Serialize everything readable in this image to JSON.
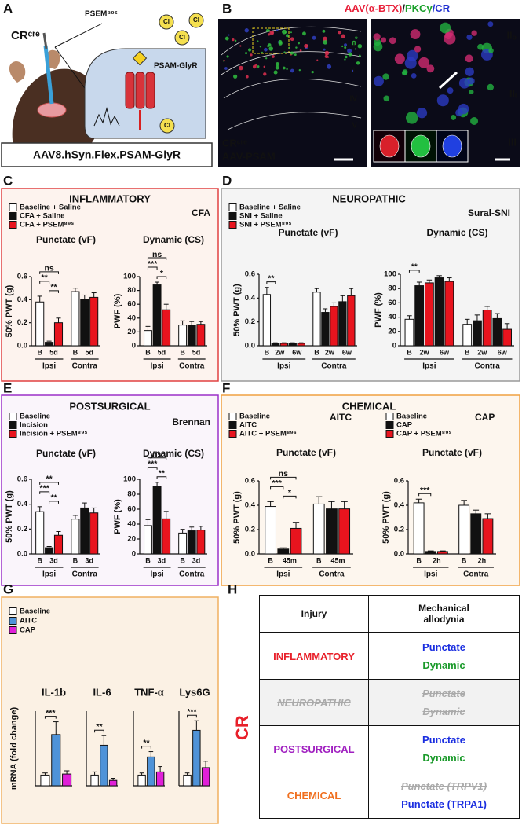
{
  "panels": {
    "A": {
      "label": "A",
      "mouse": "CRᶜʳᵉ",
      "drug": "PSEM⁸⁹ˢ",
      "receptor": "PSAM-GlyR",
      "ion": "Cl",
      "construct": "AAV8.hSyn.Flex.PSAM-GlyR"
    },
    "B": {
      "label": "B",
      "title_parts": [
        {
          "text": "AAV(α-BTX)",
          "color": "#e8203a"
        },
        {
          "text": "/",
          "color": "#1a1a1a"
        },
        {
          "text": "PKCγ",
          "color": "#1aa02a"
        },
        {
          "text": "/CR",
          "color": "#2030d0"
        }
      ],
      "layers": [
        "I",
        "II",
        "III",
        "IV",
        "V"
      ],
      "mouse": "CRᶜʳᵉ",
      "virus": "AAV-PSAM",
      "zoom_layers": [
        "IIₒ",
        "IIᵢ",
        "III"
      ]
    },
    "C": {
      "label": "C",
      "title": "INFLAMMATORY",
      "color": "#e8202a",
      "model": "CFA"
    },
    "D": {
      "label": "D",
      "title": "NEUROPATHIC",
      "color": "#7a3b2e",
      "model": "Sural-SNI"
    },
    "E": {
      "label": "E",
      "title": "POSTSURGICAL",
      "color": "#a020c0",
      "model": "Brennan"
    },
    "F": {
      "label": "F",
      "title": "CHEMICAL",
      "color": "#f07020"
    },
    "G": {
      "label": "G"
    },
    "H": {
      "label": "H",
      "side": "CR",
      "side_color": "#e8202a",
      "header": [
        "Injury",
        "Mechanical allodynia"
      ],
      "rows": [
        {
          "injury": "INFLAMMATORY",
          "color": "#e8202a",
          "struck": false,
          "allodynia": [
            {
              "text": "Punctate",
              "color": "#1a2ee0",
              "struck": false
            },
            {
              "text": "Dynamic",
              "color": "#1a9a2a",
              "struck": false
            }
          ]
        },
        {
          "injury": "NEUROPATHIC",
          "color": "#aaaaaa",
          "struck": true,
          "allodynia": [
            {
              "text": "Punctate",
              "color": "#aaaaaa",
              "struck": true
            },
            {
              "text": "Dynamic",
              "color": "#aaaaaa",
              "struck": true
            }
          ]
        },
        {
          "injury": "POSTSURGICAL",
          "color": "#a020c0",
          "struck": false,
          "allodynia": [
            {
              "text": "Punctate",
              "color": "#1a2ee0",
              "struck": false
            },
            {
              "text": "Dynamic",
              "color": "#1a9a2a",
              "struck": false
            }
          ]
        },
        {
          "injury": "CHEMICAL",
          "color": "#f07020",
          "struck": false,
          "allodynia": [
            {
              "text": "Punctate (TRPV1)",
              "color": "#aaaaaa",
              "struck": true
            },
            {
              "text": "Punctate (TRPA1)",
              "color": "#1a2ee0",
              "struck": false
            }
          ]
        }
      ]
    }
  },
  "chart_data": [
    {
      "type": "bar",
      "title": "Punctate (vF)",
      "title_color": "#1a2ee0",
      "ylabel": "50% PWT (g)",
      "ylim": [
        0,
        0.6
      ],
      "yticks": [
        {
          "value": 0,
          "label": "0.0"
        },
        {
          "value": 0.2,
          "label": "0.2"
        },
        {
          "value": 0.4,
          "label": "0.4"
        },
        {
          "value": 0.6,
          "label": "0.6"
        }
      ],
      "groups": [
        "Ipsi",
        "Contra"
      ],
      "ticks": [
        "B",
        "5d"
      ],
      "series": [
        {
          "name": "Baseline + Saline",
          "color": "#ffffff",
          "values": [
            0.38,
            0.47
          ],
          "errors": [
            0.05,
            0.03
          ]
        },
        {
          "name": "CFA + Saline",
          "color": "#111111",
          "values": [
            0.03,
            0.4
          ],
          "errors": [
            0.01,
            0.04
          ]
        },
        {
          "name": "CFA + PSEM⁸⁹ˢ",
          "color": "#e8141e",
          "values": [
            0.2,
            0.42
          ],
          "errors": [
            0.04,
            0.04
          ]
        }
      ],
      "annotations": [
        "ns",
        "**",
        "**"
      ]
    },
    {
      "type": "bar",
      "title": "Dynamic (CS)",
      "title_color": "#1a9a2a",
      "ylabel": "PWF (%)",
      "ylim": [
        0,
        100
      ],
      "yticks": [
        0,
        20,
        40,
        60,
        80,
        100
      ],
      "groups": [
        "Ipsi",
        "Contra"
      ],
      "ticks": [
        "B",
        "5d"
      ],
      "series": [
        {
          "color": "#ffffff",
          "values": [
            22,
            30
          ],
          "errors": [
            6,
            6
          ]
        },
        {
          "color": "#111111",
          "values": [
            88,
            30
          ],
          "errors": [
            4,
            5
          ]
        },
        {
          "color": "#e8141e",
          "values": [
            52,
            31
          ],
          "errors": [
            8,
            4
          ]
        }
      ],
      "annotations": [
        "ns",
        "***",
        "*"
      ]
    },
    {
      "type": "bar",
      "title": "Punctate (vF)",
      "title_color": "#1a2ee0",
      "ylabel": "50% PWT (g)",
      "ylim": [
        0,
        0.6
      ],
      "yticks": [
        {
          "value": 0,
          "label": "0.0"
        },
        {
          "value": 0.2,
          "label": "0.2"
        },
        {
          "value": 0.4,
          "label": "0.4"
        },
        {
          "value": 0.6,
          "label": "0.6"
        }
      ],
      "groups": [
        "Ipsi",
        "Contra"
      ],
      "ticks": [
        "B",
        "2w",
        "6w"
      ],
      "series": [
        {
          "name": "Baseline + Saline",
          "color": "#ffffff",
          "values": [
            0.43,
            0.45
          ],
          "errors": [
            0.06,
            0.03
          ]
        },
        {
          "name": "SNI + Saline",
          "color": "#111111",
          "values": [
            0.02,
            0.02,
            0.28,
            0.37
          ],
          "errors": [
            0.005,
            0.005,
            0.03,
            0.05
          ]
        },
        {
          "name": "SNI + PSEM⁸⁹ˢ",
          "color": "#e8141e",
          "values": [
            0.02,
            0.02,
            0.33,
            0.42
          ],
          "errors": [
            0.005,
            0.005,
            0.03,
            0.06
          ]
        }
      ],
      "annotations": [
        "**"
      ]
    },
    {
      "type": "bar",
      "title": "Dynamic (CS)",
      "title_color": "#1a9a2a",
      "ylabel": "PWF (%)",
      "ylim": [
        0,
        100
      ],
      "yticks": [
        0,
        20,
        40,
        60,
        80,
        100
      ],
      "groups": [
        "Ipsi",
        "Contra"
      ],
      "ticks": [
        "B",
        "2w",
        "6w"
      ],
      "series": [
        {
          "color": "#ffffff",
          "values": [
            37,
            30
          ],
          "errors": [
            5,
            7
          ]
        },
        {
          "color": "#111111",
          "values": [
            84,
            95,
            35,
            38
          ],
          "errors": [
            5,
            3,
            8,
            7
          ]
        },
        {
          "color": "#e8141e",
          "values": [
            88,
            90,
            50,
            23
          ],
          "errors": [
            4,
            5,
            5,
            8
          ]
        }
      ],
      "annotations": [
        "**"
      ]
    },
    {
      "type": "bar",
      "title": "Punctate (vF)",
      "title_color": "#1a2ee0",
      "ylabel": "50% PWT (g)",
      "ylim": [
        0,
        0.6
      ],
      "yticks": [
        {
          "value": 0,
          "label": "0.0"
        },
        {
          "value": 0.2,
          "label": "0.2"
        },
        {
          "value": 0.4,
          "label": "0.4"
        },
        {
          "value": 0.6,
          "label": "0.6"
        }
      ],
      "groups": [
        "Ipsi",
        "Contra"
      ],
      "ticks": [
        "B",
        "3d"
      ],
      "series": [
        {
          "name": "Baseline",
          "color": "#ffffff",
          "values": [
            0.34,
            0.28
          ],
          "errors": [
            0.04,
            0.03
          ]
        },
        {
          "name": "Incision",
          "color": "#111111",
          "values": [
            0.05,
            0.37
          ],
          "errors": [
            0.01,
            0.04
          ]
        },
        {
          "name": "Incision + PSEM⁸⁹ˢ",
          "color": "#e8141e",
          "values": [
            0.15,
            0.33
          ],
          "errors": [
            0.03,
            0.04
          ]
        }
      ],
      "annotations": [
        "**",
        "***",
        "**"
      ]
    },
    {
      "type": "bar",
      "title": "Dynamic (CS)",
      "title_color": "#1a9a2a",
      "ylabel": "PWF (%)",
      "ylim": [
        0,
        100
      ],
      "yticks": [
        0,
        20,
        40,
        60,
        80,
        100
      ],
      "groups": [
        "Ipsi",
        "Contra"
      ],
      "ticks": [
        "B",
        "3d"
      ],
      "series": [
        {
          "color": "#ffffff",
          "values": [
            38,
            28
          ],
          "errors": [
            8,
            5
          ]
        },
        {
          "color": "#111111",
          "values": [
            90,
            31
          ],
          "errors": [
            6,
            5
          ]
        },
        {
          "color": "#e8141e",
          "values": [
            47,
            32
          ],
          "errors": [
            10,
            5
          ]
        }
      ],
      "annotations": [
        "ns",
        "***",
        "**"
      ]
    },
    {
      "type": "bar",
      "title": "Punctate (vF)",
      "title_color": "#1a2ee0",
      "legend_title": "AITC",
      "ylabel": "50% PWT (g)",
      "ylim": [
        0,
        0.6
      ],
      "yticks": [
        {
          "value": 0,
          "label": "0.0"
        },
        {
          "value": 0.2,
          "label": "0.2"
        },
        {
          "value": 0.4,
          "label": "0.4"
        },
        {
          "value": 0.6,
          "label": "0.6"
        }
      ],
      "groups": [
        "Ipsi",
        "Contra"
      ],
      "ticks": [
        "B",
        "45m"
      ],
      "series": [
        {
          "name": "Baseline",
          "color": "#ffffff",
          "values": [
            0.39,
            0.41
          ],
          "errors": [
            0.04,
            0.06
          ]
        },
        {
          "name": "AITC",
          "color": "#111111",
          "values": [
            0.04,
            0.37
          ],
          "errors": [
            0.01,
            0.06
          ]
        },
        {
          "name": "AITC + PSEM⁸⁹ˢ",
          "color": "#e8141e",
          "values": [
            0.21,
            0.37
          ],
          "errors": [
            0.05,
            0.06
          ]
        }
      ],
      "annotations": [
        "ns",
        "***",
        "*"
      ]
    },
    {
      "type": "bar",
      "title": "Punctate (vF)",
      "title_color": "#1a2ee0",
      "legend_title": "CAP",
      "ylabel": "50% PWT (g)",
      "ylim": [
        0,
        0.6
      ],
      "yticks": [
        {
          "value": 0,
          "label": "0.0"
        },
        {
          "value": 0.2,
          "label": "0.2"
        },
        {
          "value": 0.4,
          "label": "0.4"
        },
        {
          "value": 0.6,
          "label": "0.6"
        }
      ],
      "groups": [
        "Ipsi",
        "Contra"
      ],
      "ticks": [
        "B",
        "2h"
      ],
      "series": [
        {
          "name": "Baseline",
          "color": "#ffffff",
          "values": [
            0.42,
            0.4
          ],
          "errors": [
            0.03,
            0.04
          ]
        },
        {
          "name": "CAP",
          "color": "#111111",
          "values": [
            0.02,
            0.33
          ],
          "errors": [
            0.005,
            0.03
          ]
        },
        {
          "name": "CAP + PSEM⁸⁹ˢ",
          "color": "#e8141e",
          "values": [
            0.02,
            0.29
          ],
          "errors": [
            0.005,
            0.04
          ]
        }
      ],
      "annotations": [
        "***"
      ]
    },
    {
      "type": "bar",
      "title": "IL-1b",
      "ylabel": "mRNA (fold change)",
      "ylim": [
        0,
        7
      ],
      "series": [
        {
          "name": "Baseline",
          "color": "#ffffff",
          "values": [
            1.0
          ],
          "errors": [
            0.2
          ]
        },
        {
          "name": "AITC",
          "color": "#4f93d8",
          "values": [
            4.8
          ],
          "errors": [
            1.2
          ]
        },
        {
          "name": "CAP",
          "color": "#e020d8",
          "values": [
            1.1
          ],
          "errors": [
            0.3
          ]
        }
      ],
      "annotations": [
        "***"
      ]
    },
    {
      "type": "bar",
      "title": "IL-6",
      "ylim": [
        0,
        7
      ],
      "series": [
        {
          "color": "#ffffff",
          "values": [
            1.0
          ],
          "errors": [
            0.3
          ]
        },
        {
          "color": "#4f93d8",
          "values": [
            3.8
          ],
          "errors": [
            0.9
          ]
        },
        {
          "color": "#e020d8",
          "values": [
            0.5
          ],
          "errors": [
            0.2
          ]
        }
      ],
      "annotations": [
        "**"
      ]
    },
    {
      "type": "bar",
      "title": "TNF-α",
      "ylim": [
        0,
        7
      ],
      "series": [
        {
          "color": "#ffffff",
          "values": [
            1.0
          ],
          "errors": [
            0.2
          ]
        },
        {
          "color": "#4f93d8",
          "values": [
            2.7
          ],
          "errors": [
            0.5
          ]
        },
        {
          "color": "#e020d8",
          "values": [
            1.3
          ],
          "errors": [
            0.5
          ]
        }
      ],
      "annotations": [
        "**"
      ]
    },
    {
      "type": "bar",
      "title": "Lys6G",
      "ylim": [
        0,
        7
      ],
      "series": [
        {
          "color": "#ffffff",
          "values": [
            1.0
          ],
          "errors": [
            0.2
          ]
        },
        {
          "color": "#4f93d8",
          "values": [
            5.2
          ],
          "errors": [
            0.9
          ]
        },
        {
          "color": "#e020d8",
          "values": [
            1.7
          ],
          "errors": [
            0.6
          ]
        }
      ],
      "annotations": [
        "***"
      ]
    }
  ]
}
